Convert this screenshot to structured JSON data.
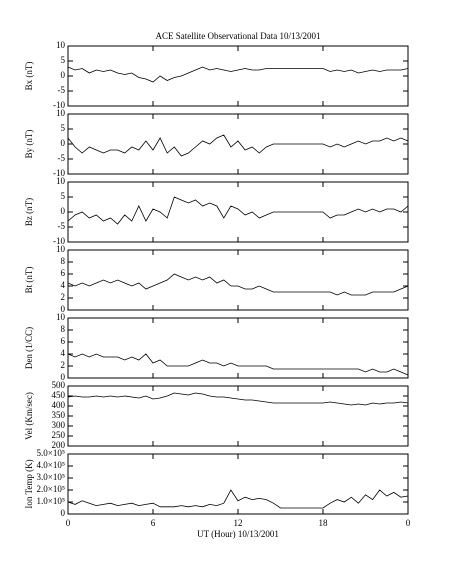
{
  "chart_data": [
    {
      "type": "line",
      "title": "ACE Satellite Observational Data   10/13/2001",
      "ylabel": "Bx (nT)",
      "xlim": [
        0,
        24
      ],
      "xticks": [
        0,
        6,
        12,
        18,
        {
          "value": 24,
          "label": "0"
        }
      ],
      "ylim": [
        -10,
        10
      ],
      "yticks": [
        -10,
        -5,
        0,
        5,
        10
      ],
      "color": "#000000",
      "x": [
        0,
        0.5,
        1,
        1.5,
        2,
        2.5,
        3,
        3.5,
        4,
        4.5,
        5,
        5.5,
        6,
        6.5,
        7,
        7.5,
        8,
        8.5,
        9,
        9.5,
        10,
        10.5,
        11,
        11.5,
        12,
        12.5,
        13,
        13.5,
        14,
        14.5,
        15,
        15.5,
        16,
        16.5,
        17,
        17.5,
        18,
        18.5,
        19,
        19.5,
        20,
        20.5,
        21,
        21.5,
        22,
        22.5,
        23,
        23.5,
        24
      ],
      "values": [
        3,
        2,
        2.5,
        1,
        2,
        1.5,
        2,
        1,
        0.5,
        1,
        -0.5,
        -1,
        -2,
        0,
        -1.5,
        -0.5,
        0,
        1,
        2,
        3,
        2,
        2.5,
        2,
        1.5,
        2,
        2.5,
        2,
        2,
        2.5,
        2.5,
        2.5,
        2.5,
        2.5,
        2.5,
        2.5,
        2.5,
        2.5,
        1.5,
        2,
        1.5,
        2,
        1,
        1.5,
        2,
        1.5,
        2,
        2,
        2,
        2.5
      ]
    },
    {
      "type": "line",
      "ylabel": "By (nT)",
      "xlim": [
        0,
        24
      ],
      "xticks": [
        0,
        6,
        12,
        18,
        {
          "value": 24,
          "label": "0"
        }
      ],
      "ylim": [
        -10,
        10
      ],
      "yticks": [
        -10,
        -5,
        0,
        5,
        10
      ],
      "color": "#000000",
      "x": [
        0,
        0.5,
        1,
        1.5,
        2,
        2.5,
        3,
        3.5,
        4,
        4.5,
        5,
        5.5,
        6,
        6.5,
        7,
        7.5,
        8,
        8.5,
        9,
        9.5,
        10,
        10.5,
        11,
        11.5,
        12,
        12.5,
        13,
        13.5,
        14,
        14.5,
        15,
        15.5,
        16,
        16.5,
        17,
        17.5,
        18,
        18.5,
        19,
        19.5,
        20,
        20.5,
        21,
        21.5,
        22,
        22.5,
        23,
        23.5,
        24
      ],
      "values": [
        2,
        -1,
        -3,
        -1,
        -2,
        -3,
        -2,
        -2,
        -3,
        -1,
        -2,
        1,
        -2,
        2,
        -3,
        -1,
        -4,
        -3,
        -1,
        1,
        0,
        2,
        3,
        -1,
        1,
        -2,
        -1,
        -3,
        -1,
        0,
        0,
        0,
        0,
        0,
        0,
        0,
        0,
        -1,
        0,
        -1,
        0,
        1,
        0,
        1,
        1,
        2,
        1,
        2,
        1
      ]
    },
    {
      "type": "line",
      "ylabel": "Bz (nT)",
      "xlim": [
        0,
        24
      ],
      "xticks": [
        0,
        6,
        12,
        18,
        {
          "value": 24,
          "label": "0"
        }
      ],
      "ylim": [
        -10,
        10
      ],
      "yticks": [
        -10,
        -5,
        0,
        5,
        10
      ],
      "color": "#000000",
      "x": [
        0,
        0.5,
        1,
        1.5,
        2,
        2.5,
        3,
        3.5,
        4,
        4.5,
        5,
        5.5,
        6,
        6.5,
        7,
        7.5,
        8,
        8.5,
        9,
        9.5,
        10,
        10.5,
        11,
        11.5,
        12,
        12.5,
        13,
        13.5,
        14,
        14.5,
        15,
        15.5,
        16,
        16.5,
        17,
        17.5,
        18,
        18.5,
        19,
        19.5,
        20,
        20.5,
        21,
        21.5,
        22,
        22.5,
        23,
        23.5,
        24
      ],
      "values": [
        -3,
        -1,
        0,
        -2,
        -1,
        -3,
        -2,
        -4,
        -1,
        -3,
        2,
        -3,
        1,
        0,
        -2,
        5,
        4,
        3,
        4,
        2,
        3,
        2,
        -2,
        2,
        1,
        -1,
        0,
        -2,
        -1,
        0,
        0,
        0,
        0,
        0,
        0,
        0,
        0,
        -2,
        -1,
        -1,
        0,
        1,
        0,
        1,
        0,
        1,
        1,
        0,
        2
      ]
    },
    {
      "type": "line",
      "ylabel": "Bt (nT)",
      "xlim": [
        0,
        24
      ],
      "xticks": [
        0,
        6,
        12,
        18,
        {
          "value": 24,
          "label": "0"
        }
      ],
      "ylim": [
        0,
        10
      ],
      "yticks": [
        0,
        2,
        4,
        6,
        8,
        10
      ],
      "color": "#000000",
      "x": [
        0,
        0.5,
        1,
        1.5,
        2,
        2.5,
        3,
        3.5,
        4,
        4.5,
        5,
        5.5,
        6,
        6.5,
        7,
        7.5,
        8,
        8.5,
        9,
        9.5,
        10,
        10.5,
        11,
        11.5,
        12,
        12.5,
        13,
        13.5,
        14,
        14.5,
        15,
        15.5,
        16,
        16.5,
        17,
        17.5,
        18,
        18.5,
        19,
        19.5,
        20,
        20.5,
        21,
        21.5,
        22,
        22.5,
        23,
        23.5,
        24
      ],
      "values": [
        4.5,
        4,
        4.5,
        4,
        4.5,
        5,
        4.5,
        5,
        4.5,
        4,
        4.5,
        3.5,
        4,
        4.5,
        5,
        6,
        5.5,
        5,
        5.5,
        5,
        5.5,
        4.5,
        5,
        4,
        4,
        3.5,
        3.5,
        4,
        3.5,
        3,
        3,
        3,
        3,
        3,
        3,
        3,
        3,
        3,
        2.5,
        3,
        2.5,
        2.5,
        2.5,
        3,
        3,
        3,
        3,
        3.5,
        4
      ]
    },
    {
      "type": "line",
      "ylabel": "Den (1/CC)",
      "xlim": [
        0,
        24
      ],
      "xticks": [
        0,
        6,
        12,
        18,
        {
          "value": 24,
          "label": "0"
        }
      ],
      "ylim": [
        0,
        10
      ],
      "yticks": [
        0,
        2,
        4,
        6,
        8,
        10
      ],
      "color": "#000000",
      "x": [
        0,
        0.5,
        1,
        1.5,
        2,
        2.5,
        3,
        3.5,
        4,
        4.5,
        5,
        5.5,
        6,
        6.5,
        7,
        7.5,
        8,
        8.5,
        9,
        9.5,
        10,
        10.5,
        11,
        11.5,
        12,
        12.5,
        13,
        13.5,
        14,
        14.5,
        15,
        15.5,
        16,
        16.5,
        17,
        17.5,
        18,
        18.5,
        19,
        19.5,
        20,
        20.5,
        21,
        21.5,
        22,
        22.5,
        23,
        23.5,
        24
      ],
      "values": [
        4,
        3.5,
        4,
        3.5,
        4,
        3.5,
        3.5,
        3.5,
        3,
        3.5,
        3,
        4,
        2.5,
        3,
        2,
        2,
        2,
        2,
        2.5,
        3,
        2.5,
        2.5,
        2,
        2.5,
        2,
        2,
        2,
        2,
        2,
        1.5,
        1.5,
        1.5,
        1.5,
        1.5,
        1.5,
        1.5,
        1.5,
        1.5,
        1.5,
        1.5,
        1.5,
        1.5,
        1,
        1.5,
        1,
        1,
        1.5,
        1,
        0.5
      ]
    },
    {
      "type": "line",
      "ylabel": "Vel (Km/sec)",
      "xlim": [
        0,
        24
      ],
      "xticks": [
        0,
        6,
        12,
        18,
        {
          "value": 24,
          "label": "0"
        }
      ],
      "ylim": [
        200,
        500
      ],
      "yticks": [
        200,
        250,
        300,
        350,
        400,
        450,
        500
      ],
      "color": "#000000",
      "x": [
        0,
        0.5,
        1,
        1.5,
        2,
        2.5,
        3,
        3.5,
        4,
        4.5,
        5,
        5.5,
        6,
        6.5,
        7,
        7.5,
        8,
        8.5,
        9,
        9.5,
        10,
        10.5,
        11,
        11.5,
        12,
        12.5,
        13,
        13.5,
        14,
        14.5,
        15,
        15.5,
        16,
        16.5,
        17,
        17.5,
        18,
        18.5,
        19,
        19.5,
        20,
        20.5,
        21,
        21.5,
        22,
        22.5,
        23,
        23.5,
        24
      ],
      "values": [
        445,
        450,
        445,
        445,
        450,
        445,
        450,
        445,
        450,
        445,
        440,
        450,
        435,
        440,
        450,
        465,
        460,
        455,
        465,
        460,
        450,
        445,
        445,
        440,
        435,
        430,
        430,
        425,
        420,
        415,
        415,
        415,
        415,
        415,
        415,
        415,
        415,
        420,
        415,
        410,
        405,
        410,
        405,
        415,
        410,
        415,
        415,
        420,
        415
      ]
    },
    {
      "type": "line",
      "ylabel": "Ion Temp (K)",
      "xlabel": "UT (Hour)  10/13/2001",
      "xlim": [
        0,
        24
      ],
      "xticks": [
        0,
        6,
        12,
        18,
        {
          "value": 24,
          "label": "0"
        }
      ],
      "ylim": [
        0,
        500000
      ],
      "yticks": [
        0,
        {
          "value": 100000,
          "label": "1.0×10⁵"
        },
        {
          "value": 200000,
          "label": "2.0×10⁵"
        },
        {
          "value": 300000,
          "label": "3.0×10⁵"
        },
        {
          "value": 400000,
          "label": "4.0×10⁵"
        },
        {
          "value": 500000,
          "label": "5.0×10⁵"
        }
      ],
      "color": "#000000",
      "x": [
        0,
        0.5,
        1,
        1.5,
        2,
        2.5,
        3,
        3.5,
        4,
        4.5,
        5,
        5.5,
        6,
        6.5,
        7,
        7.5,
        8,
        8.5,
        9,
        9.5,
        10,
        10.5,
        11,
        11.5,
        12,
        12.5,
        13,
        13.5,
        14,
        14.5,
        15,
        15.5,
        16,
        16.5,
        17,
        17.5,
        18,
        18.5,
        19,
        19.5,
        20,
        20.5,
        21,
        21.5,
        22,
        22.5,
        23,
        23.5,
        24
      ],
      "values": [
        100000,
        80000,
        110000,
        90000,
        70000,
        80000,
        90000,
        70000,
        80000,
        90000,
        70000,
        80000,
        90000,
        60000,
        60000,
        60000,
        70000,
        60000,
        70000,
        60000,
        80000,
        70000,
        90000,
        200000,
        110000,
        140000,
        120000,
        130000,
        120000,
        90000,
        50000,
        50000,
        50000,
        50000,
        50000,
        50000,
        50000,
        90000,
        120000,
        100000,
        140000,
        90000,
        160000,
        120000,
        200000,
        150000,
        180000,
        140000,
        150000
      ]
    }
  ]
}
